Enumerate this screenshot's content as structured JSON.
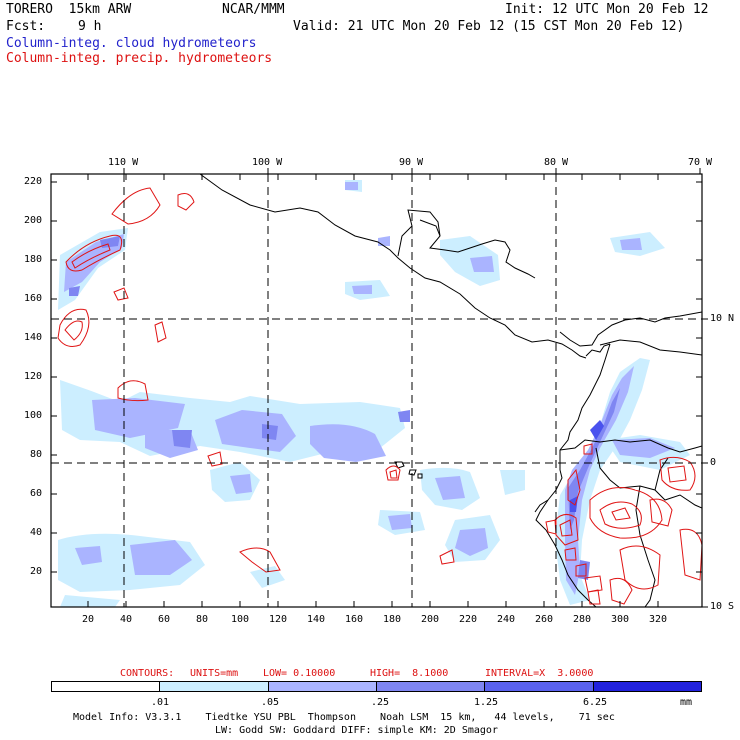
{
  "header": {
    "model": "TORERO  15km ARW",
    "center": "NCAR/MMM",
    "init": "Init: 12 UTC Mon 20 Feb 12",
    "fcst_label": "Fcst:",
    "fcst_value": "9 h",
    "valid": "Valid: 21 UTC Mon 20 Feb 12 (15 CST Mon 20 Feb 12)"
  },
  "titles": {
    "line1": "Column-integ. cloud hydrometeors",
    "line2": "Column-integ. precip. hydrometeors"
  },
  "colors": {
    "title_blue": "#2222cc",
    "title_red": "#dd1111",
    "contour_red": "#e01515",
    "fill": [
      "#ffffff",
      "#cceeff",
      "#aab4ff",
      "#7f86f2",
      "#5a62ee",
      "#3a3ae6",
      "#2222dd"
    ]
  },
  "map": {
    "lon_labels": [
      "110 W",
      "100 W",
      "90 W",
      "80 W",
      "70 W"
    ],
    "lat_labels": [
      "10 N",
      "0",
      "10 S"
    ],
    "y_ticks": [
      "220",
      "200",
      "180",
      "160",
      "140",
      "120",
      "100",
      "80",
      "60",
      "40",
      "20"
    ],
    "x_ticks": [
      "20",
      "40",
      "60",
      "80",
      "100",
      "120",
      "140",
      "160",
      "180",
      "200",
      "220",
      "240",
      "260",
      "280",
      "300",
      "320"
    ]
  },
  "contours_note": {
    "label": "CONTOURS:",
    "units": "UNITS=mm",
    "low": "LOW= 0.10000",
    "high": "HIGH=  8.1000",
    "interval": "INTERVAL=X  3.0000"
  },
  "colorbar": {
    "values": [
      ".01",
      ".05",
      ".25",
      "1.25",
      "6.25"
    ],
    "unit": "mm"
  },
  "footer": {
    "line1": "Model Info: V3.3.1    Tiedtke YSU PBL  Thompson    Noah LSM  15 km,   44 levels,    71 sec",
    "line2": "LW: Godd SW: Goddard DIFF: simple KM: 2D Smagor"
  }
}
